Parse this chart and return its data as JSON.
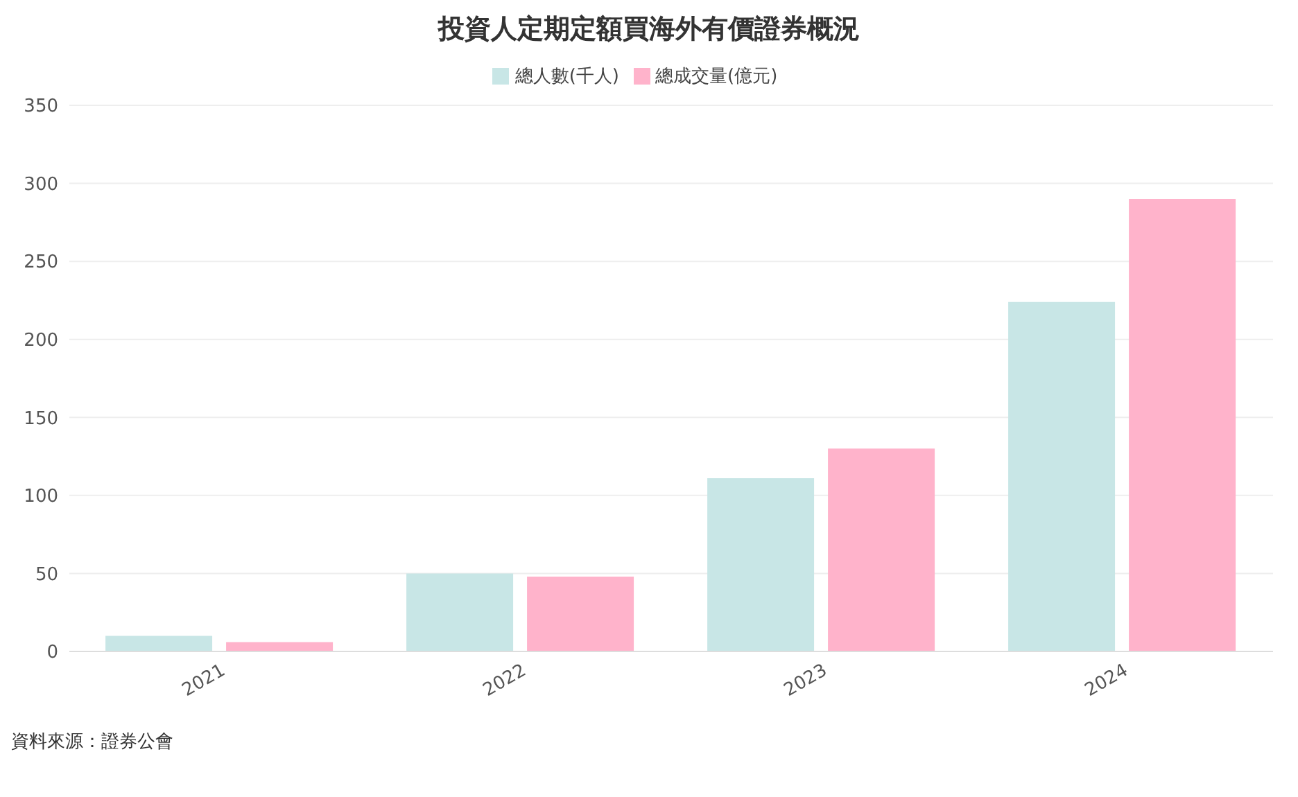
{
  "chart_data": {
    "type": "bar",
    "title": "投資人定期定額買海外有價證券概況",
    "categories": [
      "2021",
      "2022",
      "2023",
      "2024"
    ],
    "series": [
      {
        "name": "總人數(千人)",
        "color": "#c8e6e6",
        "values": [
          10,
          50,
          111,
          224
        ]
      },
      {
        "name": "總成交量(億元)",
        "color": "#ffb3cb",
        "values": [
          6,
          48,
          130,
          290
        ]
      }
    ],
    "ylim": [
      0,
      350
    ],
    "yticks": [
      0,
      50,
      100,
      150,
      200,
      250,
      300,
      350
    ],
    "grid": "y",
    "legend": "top",
    "annotations": [
      "資料來源：證券公會"
    ]
  }
}
